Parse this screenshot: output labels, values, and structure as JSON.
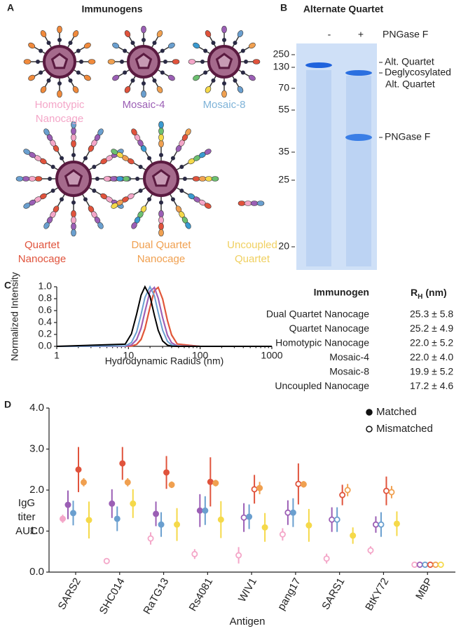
{
  "panel_a": {
    "letter": "A",
    "title": "Immunogens",
    "labels": [
      [
        "Homotypic",
        "Nanocage"
      ],
      [
        "Mosaic-4"
      ],
      [
        "Mosaic-8"
      ],
      [
        "Quartet",
        "Nanocage"
      ],
      [
        "Dual Quartet",
        "Nanocage"
      ],
      [
        "Uncoupled",
        "Quartet"
      ]
    ]
  },
  "panel_b": {
    "letter": "B",
    "title": "Alternate Quartet",
    "lanes": [
      "-",
      "+"
    ],
    "treatment": "PNGase F",
    "markers": [
      250,
      130,
      70,
      55,
      35,
      25,
      20
    ],
    "bands": [
      [
        "Alt. Quartet"
      ],
      [
        "Deglycosylated",
        "Alt. Quartet"
      ],
      [
        "PNGase F"
      ]
    ]
  },
  "panel_c_table": {
    "header": {
      "name": "Immunogen",
      "symbol": "R",
      "sub": "H",
      "unit": "(nm)"
    },
    "rows": [
      [
        "Dual Quartet Nanocage",
        "25.3 ± 5.8"
      ],
      [
        "Quartet Nanocage",
        "25.2 ± 4.9"
      ],
      [
        "Homotypic Nanocage",
        "22.0 ± 5.2"
      ],
      [
        "Mosaic-4",
        "22.0 ± 4.0"
      ],
      [
        "Mosaic-8",
        "19.9 ± 5.2"
      ],
      [
        "Uncoupled Nanocage",
        "17.2 ± 4.6"
      ]
    ]
  },
  "chart_data": [
    {
      "type": "line",
      "letter": "C",
      "x_label": "Hydrodynamic Radius (nm)",
      "y_label": "Normalized Intensity",
      "x_scale": "log",
      "xlim": [
        1,
        1000
      ],
      "xticks": [
        1,
        10,
        100,
        1000
      ],
      "ylim": [
        0,
        1
      ],
      "yticks": [
        {
          "value": 0,
          "label": "0.0"
        },
        {
          "value": 0.2,
          "label": "0.2"
        },
        {
          "value": 0.4,
          "label": "0.4"
        },
        {
          "value": 0.6,
          "label": "0.6"
        },
        {
          "value": 0.8,
          "label": "0.8"
        },
        {
          "value": 1,
          "label": "1.0"
        }
      ],
      "x": [
        1,
        9,
        11,
        13,
        15,
        17,
        20,
        23,
        26,
        30,
        35,
        40,
        48,
        100,
        1000
      ],
      "series": [
        {
          "color": "#f0a050",
          "values": [
            0,
            0,
            0.005,
            0.03,
            0.11,
            0.29,
            0.65,
            0.93,
            0.99,
            0.8,
            0.44,
            0.2,
            0.04,
            0,
            0
          ]
        },
        {
          "color": "#e0533c",
          "values": [
            0,
            0,
            0.005,
            0.033,
            0.12,
            0.3,
            0.66,
            0.94,
            0.99,
            0.79,
            0.43,
            0.19,
            0.039,
            0,
            0
          ]
        },
        {
          "color": "#f4a6c8",
          "values": [
            0,
            0.002,
            0.024,
            0.12,
            0.32,
            0.6,
            0.93,
            0.98,
            0.8,
            0.47,
            0.18,
            0.061,
            0.009,
            0,
            0
          ]
        },
        {
          "color": "#9b5fb5",
          "values": [
            0,
            0.002,
            0.022,
            0.11,
            0.3,
            0.58,
            0.92,
            0.99,
            0.81,
            0.48,
            0.19,
            0.06,
            0.008,
            0,
            0
          ]
        },
        {
          "color": "#6a9fcf",
          "values": [
            0,
            0.007,
            0.064,
            0.24,
            0.54,
            0.82,
            1,
            0.85,
            0.57,
            0.27,
            0.084,
            0.023,
            0.002,
            0,
            0
          ]
        },
        {
          "color": "#000000",
          "values": [
            0,
            0.037,
            0.21,
            0.54,
            0.86,
            1,
            0.84,
            0.52,
            0.27,
            0.09,
            0.02,
            0.004,
            0,
            0,
            0
          ]
        }
      ]
    },
    {
      "type": "dot",
      "letter": "D",
      "x_label": "Antigen",
      "y_label": [
        "IgG",
        "titer",
        "AUC"
      ],
      "categories": [
        "SARS2",
        "SHC014",
        "RaTG13",
        "Rs4081",
        "WIV1",
        "pang17",
        "SARS1",
        "BtKY72",
        "MBP"
      ],
      "ylim": [
        0,
        4
      ],
      "yticks": [
        {
          "value": 0,
          "label": "0.0"
        },
        {
          "value": 1,
          "label": "1.0"
        },
        {
          "value": 2,
          "label": "2.0"
        },
        {
          "value": 3,
          "label": "3.0"
        },
        {
          "value": 4,
          "label": "4.0"
        }
      ],
      "legend": [
        "Matched",
        "Mismatched"
      ],
      "series": [
        {
          "color": "#f4a6c8",
          "values": [
            1.3,
            0.27,
            0.82,
            0.44,
            0.41,
            0.92,
            0.33,
            0.53,
            0.18
          ],
          "errors": [
            0.1,
            0.05,
            0.15,
            0.12,
            0.2,
            0.15,
            0.12,
            0.1,
            0.02
          ],
          "matched": [
            true,
            false,
            false,
            false,
            false,
            false,
            false,
            false,
            false
          ]
        },
        {
          "color": "#9b5fb5",
          "values": [
            1.64,
            1.67,
            1.42,
            1.5,
            1.33,
            1.45,
            1.28,
            1.16,
            0.18
          ],
          "errors": [
            0.35,
            0.35,
            0.3,
            0.4,
            0.35,
            0.3,
            0.3,
            0.2,
            0.02
          ],
          "matched": [
            true,
            true,
            true,
            true,
            false,
            false,
            false,
            false,
            false
          ]
        },
        {
          "color": "#6a9fcf",
          "values": [
            1.44,
            1.3,
            1.16,
            1.5,
            1.35,
            1.45,
            1.28,
            1.16,
            0.18
          ],
          "errors": [
            0.3,
            0.3,
            0.3,
            0.35,
            0.3,
            0.35,
            0.3,
            0.3,
            0.02
          ],
          "matched": [
            true,
            true,
            true,
            true,
            true,
            true,
            false,
            false,
            false
          ]
        },
        {
          "color": "#e0533c",
          "values": [
            2.5,
            2.65,
            2.43,
            2.2,
            2.02,
            2.15,
            1.88,
            1.98,
            0.18
          ],
          "errors": [
            0.55,
            0.4,
            0.4,
            0.6,
            0.35,
            0.5,
            0.25,
            0.35,
            0.02
          ],
          "matched": [
            true,
            true,
            true,
            true,
            false,
            false,
            false,
            false,
            false
          ]
        },
        {
          "color": "#f0a050",
          "values": [
            2.19,
            2.19,
            2.13,
            2.17,
            2.05,
            2.14,
            2.0,
            1.95,
            0.18
          ],
          "errors": [
            0.1,
            0.1,
            0.08,
            0.08,
            0.15,
            0.08,
            0.15,
            0.15,
            0.02
          ],
          "matched": [
            true,
            true,
            true,
            true,
            true,
            true,
            false,
            false,
            false
          ]
        },
        {
          "color": "#f5d94a",
          "values": [
            1.27,
            1.67,
            1.16,
            1.28,
            1.09,
            1.14,
            0.89,
            1.18,
            0.18
          ],
          "errors": [
            0.45,
            0.35,
            0.4,
            0.45,
            0.35,
            0.4,
            0.2,
            0.3,
            0.02
          ],
          "matched": [
            true,
            true,
            true,
            true,
            true,
            true,
            true,
            true,
            false
          ]
        }
      ]
    }
  ]
}
